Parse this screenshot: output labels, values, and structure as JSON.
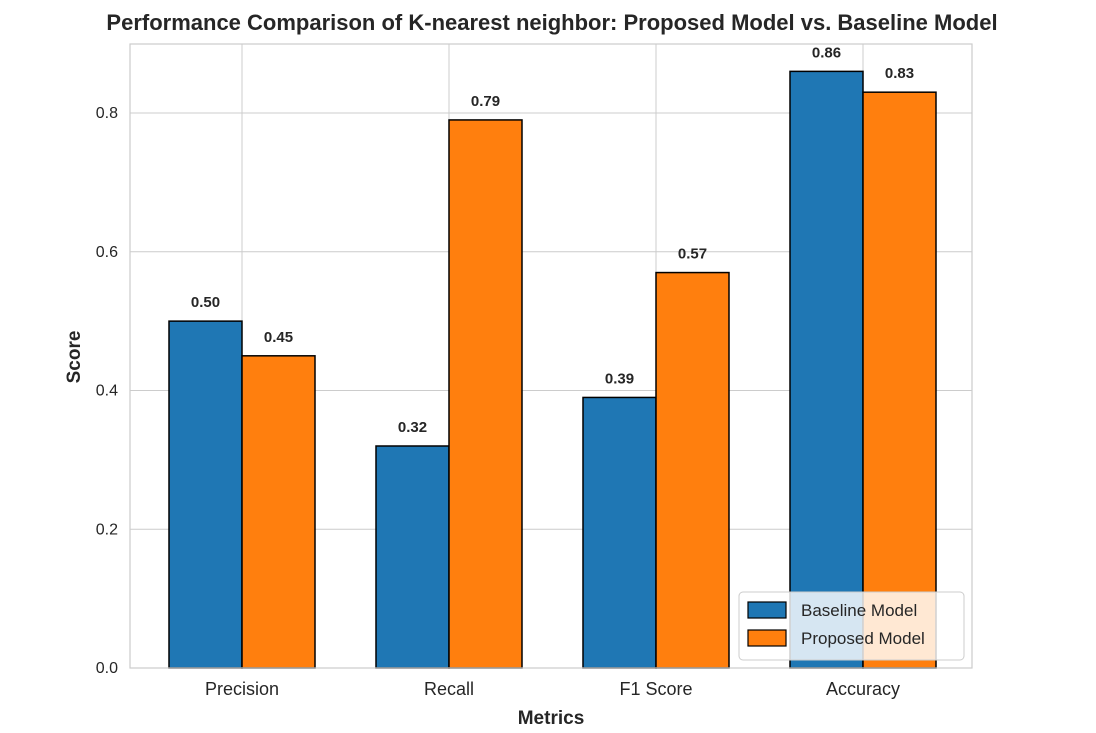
{
  "chart_data": {
    "type": "bar",
    "title": "Performance Comparison of K-nearest neighbor: Proposed Model vs. Baseline Model",
    "xlabel": "Metrics",
    "ylabel": "Score",
    "categories": [
      "Precision",
      "Recall",
      "F1 Score",
      "Accuracy"
    ],
    "series": [
      {
        "name": "Baseline Model",
        "values": [
          0.5,
          0.32,
          0.39,
          0.86
        ],
        "labels": [
          "0.50",
          "0.32",
          "0.39",
          "0.86"
        ],
        "color": "#1f77b4"
      },
      {
        "name": "Proposed Model",
        "values": [
          0.45,
          0.79,
          0.57,
          0.83
        ],
        "labels": [
          "0.45",
          "0.79",
          "0.57",
          "0.83"
        ],
        "color": "#ff7f0e"
      }
    ],
    "ylim": [
      0,
      0.9
    ],
    "yticks": [
      0.0,
      0.2,
      0.4,
      0.6,
      0.8
    ],
    "ytick_labels": [
      "0.0",
      "0.2",
      "0.4",
      "0.6",
      "0.8"
    ],
    "grid": true,
    "legend_position": "lower-right",
    "bar_edge_color": "#000000",
    "grid_color": "#cccccc",
    "axes_edge_color": "#cccccc"
  }
}
